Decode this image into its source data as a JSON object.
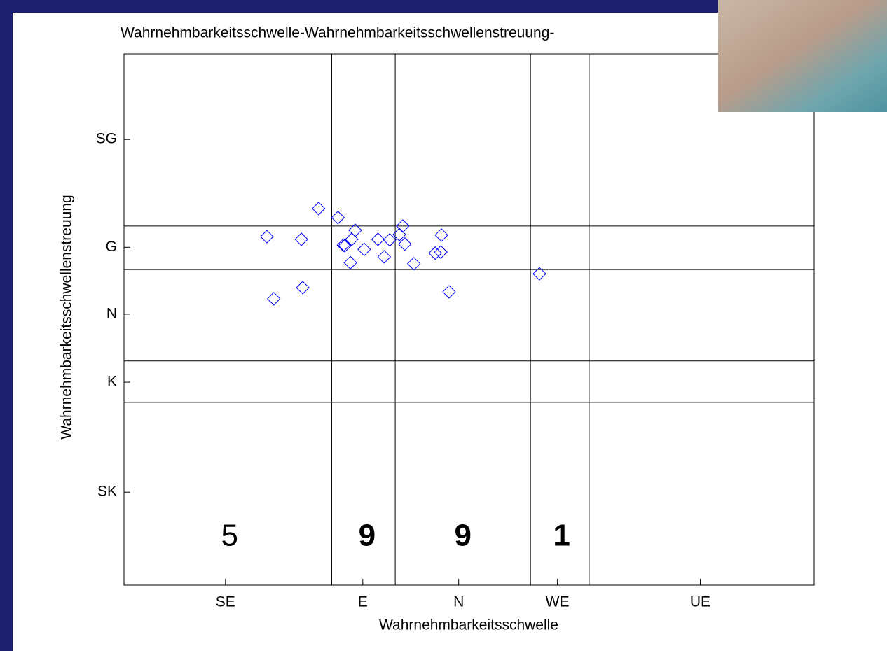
{
  "chart_data": {
    "type": "scatter",
    "title": "Wahrnehmbarkeitsschwelle-Wahrnehmbarkeitsschwellenstreuung-",
    "x_label": "Wahrnehmbarkeitsschwelle",
    "y_label": "Wahrnehmbarkeitsschwellenstreuung",
    "xlim": [
      0,
      100
    ],
    "ylim": [
      0,
      100
    ],
    "xticks": [
      {
        "value": 14.7,
        "label": "SE"
      },
      {
        "value": 34.6,
        "label": "E"
      },
      {
        "value": 48.5,
        "label": "N"
      },
      {
        "value": 62.8,
        "label": "WE"
      },
      {
        "value": 83.5,
        "label": "UE"
      }
    ],
    "yticks": [
      {
        "value": 17.5,
        "label": "SK"
      },
      {
        "value": 38.2,
        "label": "K"
      },
      {
        "value": 51.0,
        "label": "N"
      },
      {
        "value": 63.6,
        "label": "G"
      },
      {
        "value": 83.9,
        "label": "SG"
      }
    ],
    "vlines": [
      30.1,
      39.3,
      58.9,
      67.4
    ],
    "hlines": [
      67.6,
      59.4,
      42.2,
      34.4
    ],
    "marker": "diamond",
    "color": "#0000ff",
    "x": [
      20.7,
      21.7,
      25.7,
      25.9,
      28.2,
      31.0,
      31.8,
      32.0,
      33.0,
      33.5,
      32.8,
      34.8,
      36.8,
      37.7,
      38.5,
      39.9,
      40.4,
      40.7,
      42.0,
      45.1,
      45.9,
      46.0,
      47.1,
      60.2
    ],
    "y": [
      65.6,
      53.9,
      65.1,
      56.0,
      70.9,
      69.2,
      64.0,
      63.9,
      65.1,
      66.8,
      60.7,
      63.2,
      65.1,
      61.8,
      65.0,
      66.0,
      67.6,
      64.2,
      60.5,
      62.5,
      62.7,
      65.9,
      55.2,
      58.6
    ],
    "annotations": [
      {
        "text": "5",
        "color": "#ee1c24"
      },
      {
        "text": "9",
        "color": "#f7771b"
      },
      {
        "text": "9",
        "color": "#2e9a3a"
      },
      {
        "text": "1",
        "color": "#2b2fcf"
      }
    ]
  }
}
